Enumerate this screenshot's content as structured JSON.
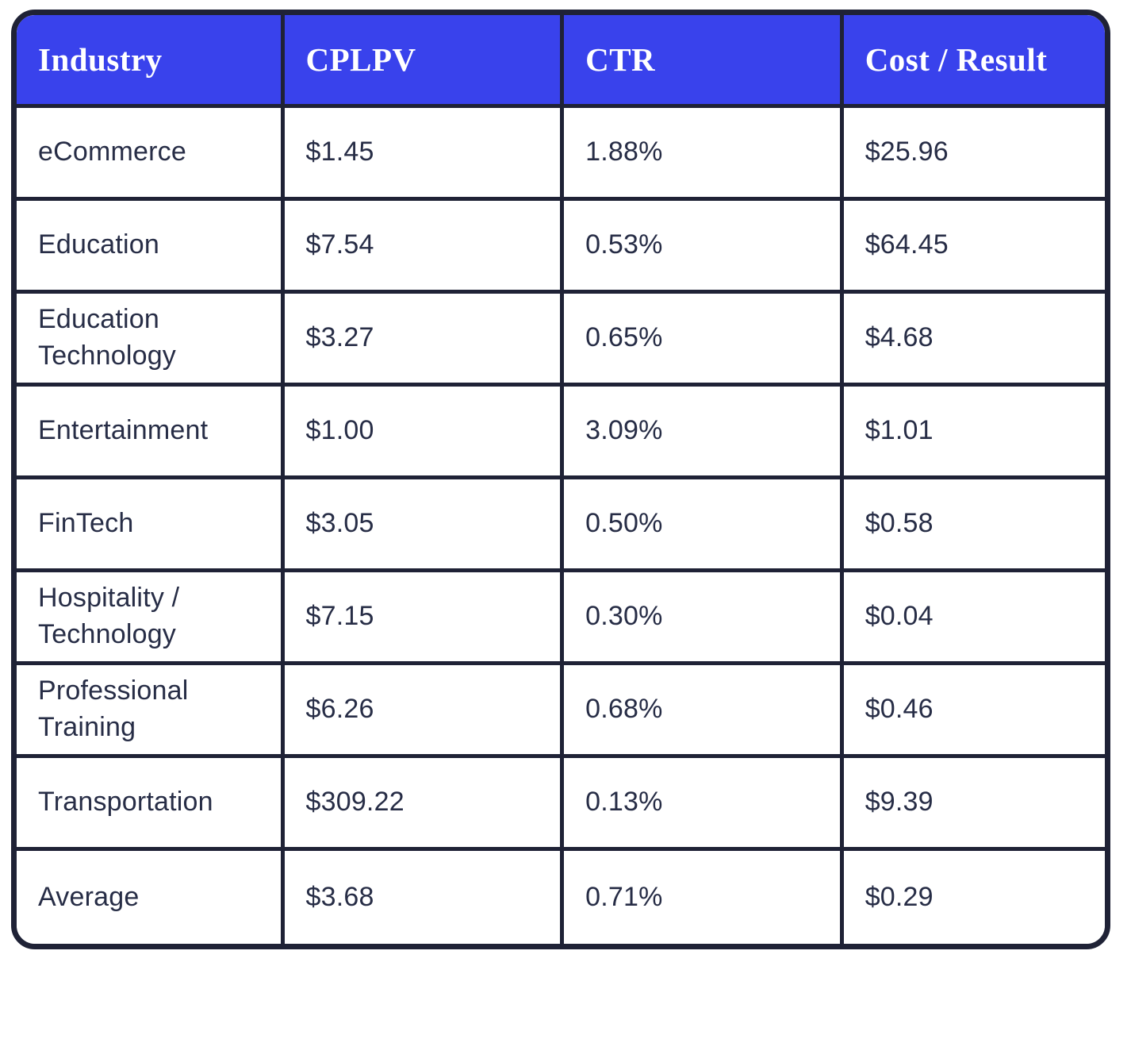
{
  "chart_data": {
    "type": "table",
    "title": "",
    "columns": [
      {
        "key": "industry",
        "label": "Industry"
      },
      {
        "key": "cplpv",
        "label": "CPLPV"
      },
      {
        "key": "ctr",
        "label": "CTR"
      },
      {
        "key": "cost_result",
        "label": "Cost / Result"
      }
    ],
    "rows": [
      {
        "industry": "eCommerce",
        "cplpv": "$1.45",
        "ctr": "1.88%",
        "cost_result": "$25.96"
      },
      {
        "industry": "Education",
        "cplpv": "$7.54",
        "ctr": "0.53%",
        "cost_result": "$64.45"
      },
      {
        "industry": "Education Technology",
        "cplpv": "$3.27",
        "ctr": "0.65%",
        "cost_result": "$4.68"
      },
      {
        "industry": "Entertainment",
        "cplpv": "$1.00",
        "ctr": "3.09%",
        "cost_result": "$1.01"
      },
      {
        "industry": "FinTech",
        "cplpv": "$3.05",
        "ctr": "0.50%",
        "cost_result": "$0.58"
      },
      {
        "industry": "Hospitality / Technology",
        "cplpv": "$7.15",
        "ctr": "0.30%",
        "cost_result": "$0.04"
      },
      {
        "industry": "Professional Training",
        "cplpv": "$6.26",
        "ctr": "0.68%",
        "cost_result": "$0.46"
      },
      {
        "industry": "Transportation",
        "cplpv": "$309.22",
        "ctr": "0.13%",
        "cost_result": "$9.39"
      },
      {
        "industry": "Average",
        "cplpv": "$3.68",
        "ctr": "0.71%",
        "cost_result": "$0.29"
      }
    ],
    "layout": {
      "header_position": "top",
      "grid": true
    },
    "colors": {
      "header_bg": "#3942ec",
      "header_text": "#ffffff",
      "border": "#1f2236",
      "cell_bg": "#ffffff",
      "cell_text": "#272d46"
    }
  }
}
